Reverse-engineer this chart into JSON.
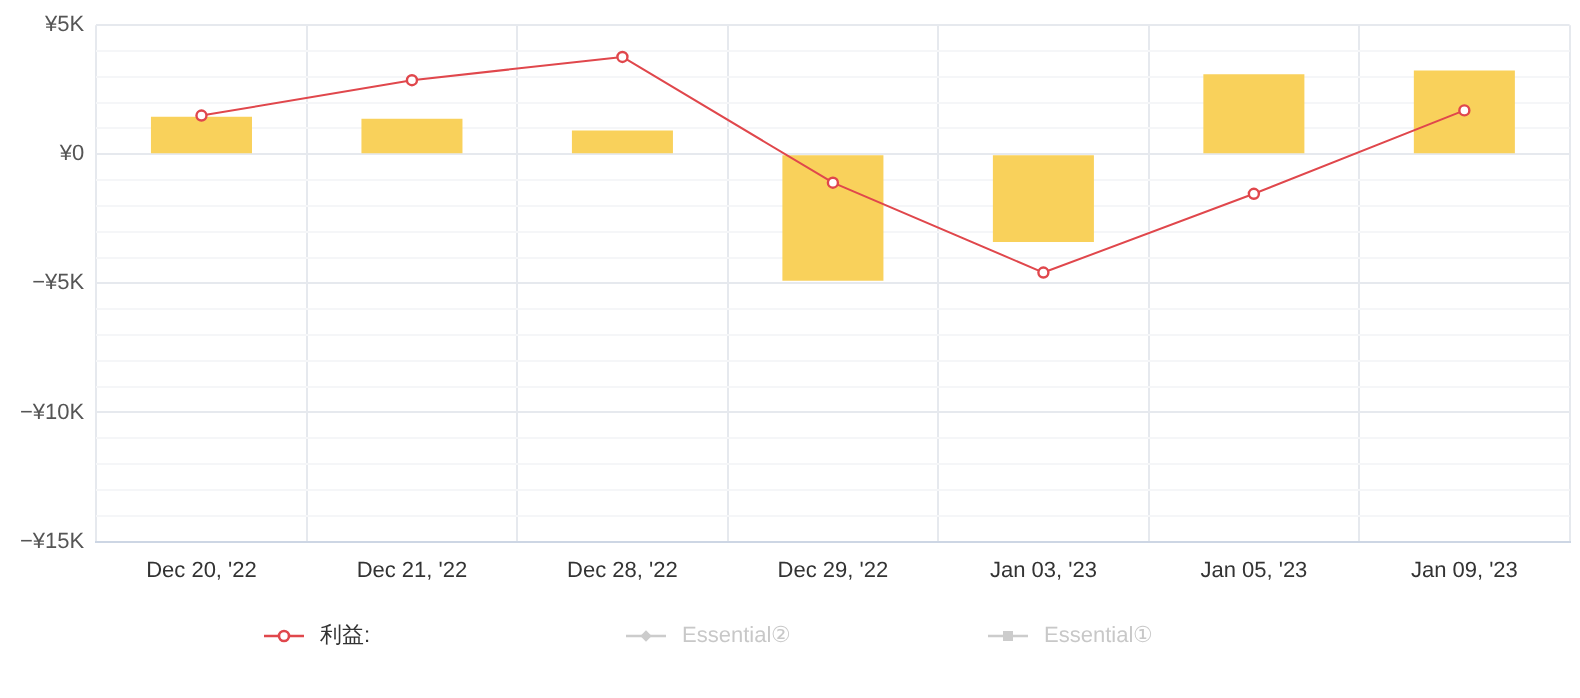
{
  "chart_data": {
    "type": "bar",
    "categories": [
      "Dec 20, '22",
      "Dec 21, '22",
      "Dec 28, '22",
      "Dec 29, '22",
      "Jan 03, '23",
      "Jan 05, '23",
      "Jan 09, '23"
    ],
    "series": [
      {
        "color": "#f9d15b",
        "values": [
          1450,
          1380,
          920,
          -4900,
          -3400,
          3100,
          3250
        ]
      },
      {
        "type": "line",
        "name": "利益:",
        "color": "#e0474c",
        "marker": "circle",
        "values": [
          1500,
          2870,
          3770,
          -1100,
          -4580,
          -1530,
          1700
        ]
      },
      {
        "type": "line",
        "name": "Essential②",
        "color": "#cccccc",
        "marker": "diamond",
        "values": [
          null,
          null,
          null,
          null,
          null,
          null,
          null
        ]
      },
      {
        "type": "line",
        "name": "Essential①",
        "color": "#cccccc",
        "marker": "square",
        "values": [
          null,
          null,
          null,
          null,
          null,
          null,
          null
        ]
      }
    ],
    "ylim": [
      -15000,
      5000
    ],
    "yticks": [
      {
        "value": -15000,
        "label": "−¥15K"
      },
      {
        "value": -14000,
        "label": null
      },
      {
        "value": -13000,
        "label": null
      },
      {
        "value": -12000,
        "label": null
      },
      {
        "value": -11000,
        "label": null
      },
      {
        "value": -10000,
        "label": "−¥10K"
      },
      {
        "value": -9000,
        "label": null
      },
      {
        "value": -8000,
        "label": null
      },
      {
        "value": -7000,
        "label": null
      },
      {
        "value": -6000,
        "label": null
      },
      {
        "value": -5000,
        "label": "−¥5K"
      },
      {
        "value": -4000,
        "label": null
      },
      {
        "value": -3000,
        "label": null
      },
      {
        "value": -2000,
        "label": null
      },
      {
        "value": -1000,
        "label": null
      },
      {
        "value": 0,
        "label": "¥0"
      },
      {
        "value": 1000,
        "label": null
      },
      {
        "value": 2000,
        "label": null
      },
      {
        "value": 3000,
        "label": null
      },
      {
        "value": 4000,
        "label": null
      },
      {
        "value": 5000,
        "label": "¥5K"
      }
    ],
    "grid": true,
    "legend": "bottom"
  }
}
